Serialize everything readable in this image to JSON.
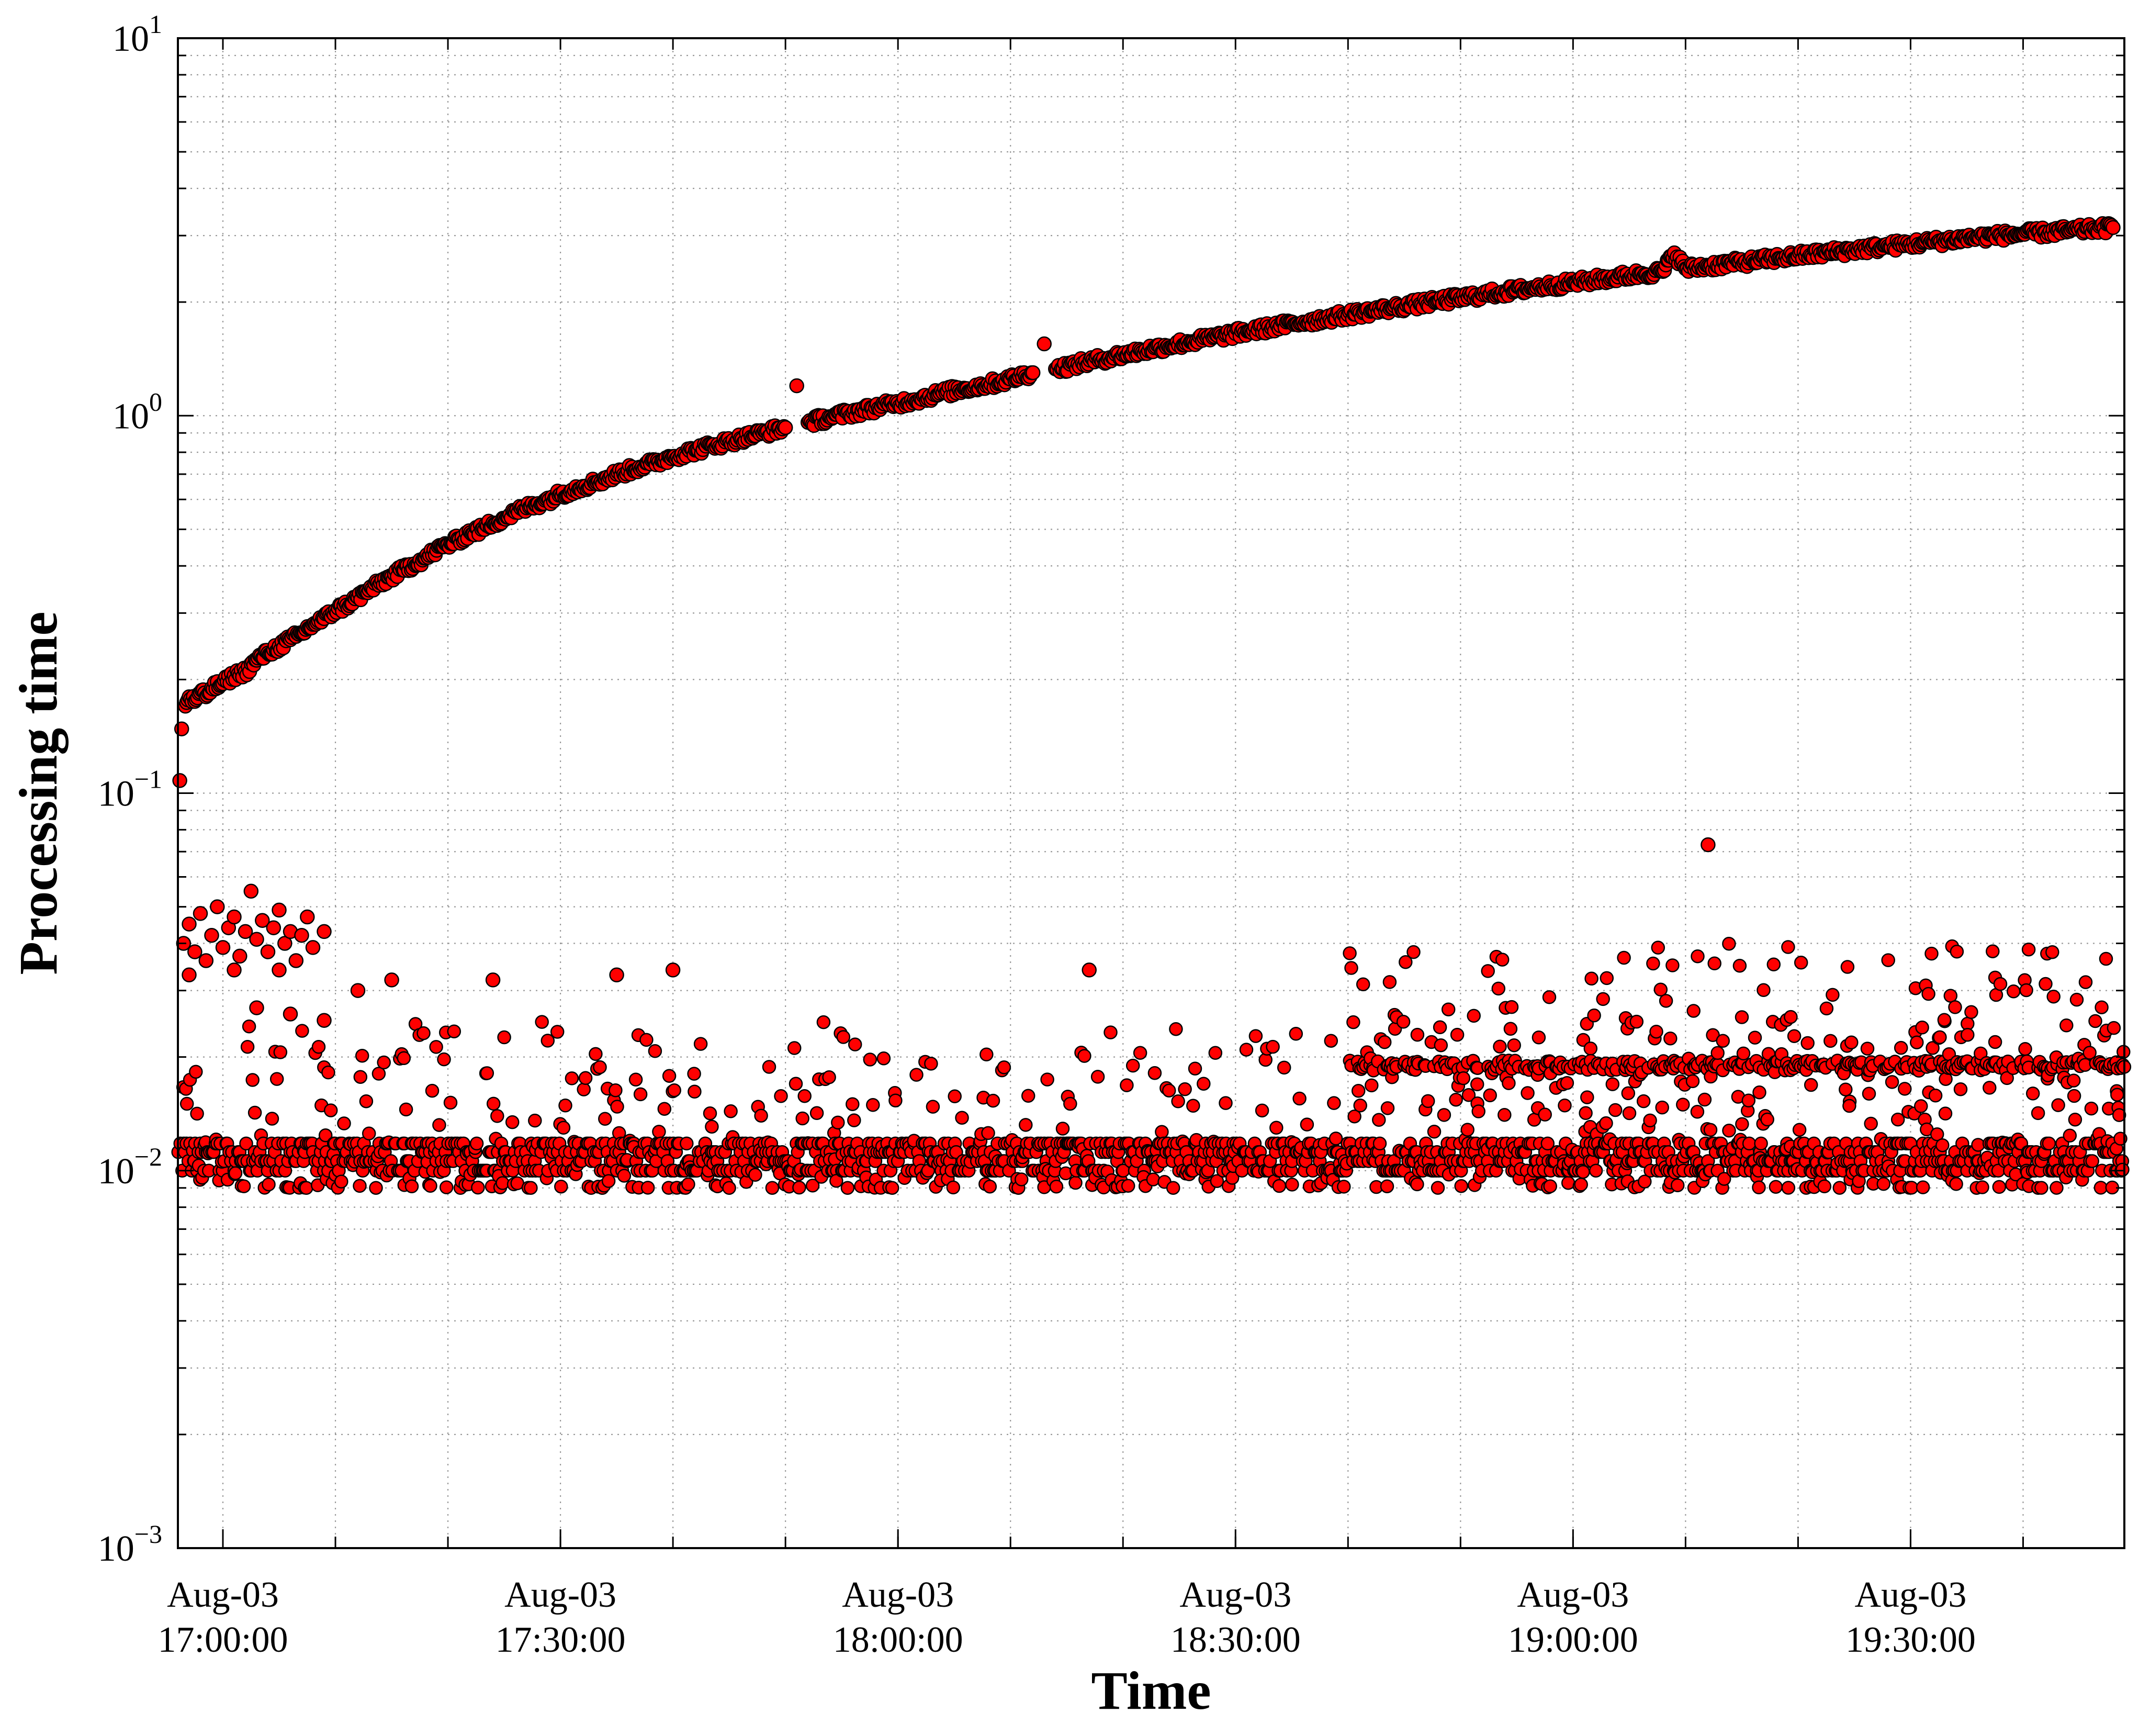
{
  "chart_data": {
    "type": "scatter",
    "title": "",
    "xlabel": "Time",
    "ylabel": "Processing time",
    "y_scale": "log",
    "ylim": [
      0.001,
      10
    ],
    "xlim": [
      "2017-08-03 16:56:00",
      "2017-08-03 19:49:00"
    ],
    "x_ticks": [
      {
        "value": "2017-08-03 17:00:00",
        "label_line1": "Aug-03",
        "label_line2": "17:00:00"
      },
      {
        "value": "2017-08-03 17:30:00",
        "label_line1": "Aug-03",
        "label_line2": "17:30:00"
      },
      {
        "value": "2017-08-03 18:00:00",
        "label_line1": "Aug-03",
        "label_line2": "18:00:00"
      },
      {
        "value": "2017-08-03 18:30:00",
        "label_line1": "Aug-03",
        "label_line2": "18:30:00"
      },
      {
        "value": "2017-08-03 19:00:00",
        "label_line1": "Aug-03",
        "label_line2": "19:00:00"
      },
      {
        "value": "2017-08-03 19:30:00",
        "label_line1": "Aug-03",
        "label_line2": "19:30:00"
      }
    ],
    "x_minor_grid_minutes": 10,
    "y_ticks": [
      {
        "value": 0.001,
        "base": "10",
        "exp": "−3"
      },
      {
        "value": 0.01,
        "base": "10",
        "exp": "−2"
      },
      {
        "value": 0.1,
        "base": "10",
        "exp": "−1"
      },
      {
        "value": 1,
        "base": "10",
        "exp": "0"
      },
      {
        "value": 10,
        "base": "10",
        "exp": "1"
      }
    ],
    "grid": true,
    "grid_style": "dotted",
    "marker": {
      "shape": "circle",
      "fill": "#ff0000",
      "edge": "#000000"
    },
    "series": [
      {
        "points": [
          [
            "16:56:10",
            0.108
          ],
          [
            "16:56:20",
            0.148
          ],
          [
            "16:56:40",
            0.17
          ],
          [
            "16:57:00",
            0.18
          ],
          [
            "16:57:30",
            0.175
          ],
          [
            "16:58:00",
            0.185
          ],
          [
            "16:58:30",
            0.18
          ],
          [
            "16:59:00",
            0.19
          ],
          [
            "17:00:00",
            0.195
          ],
          [
            "17:01:00",
            0.205
          ],
          [
            "17:02:00",
            0.21
          ],
          [
            "17:03:00",
            0.225
          ],
          [
            "17:04:00",
            0.235
          ],
          [
            "17:05:00",
            0.245
          ],
          [
            "17:06:00",
            0.255
          ],
          [
            "17:07:00",
            0.265
          ],
          [
            "17:08:00",
            0.28
          ],
          [
            "17:09:00",
            0.29
          ],
          [
            "17:10:00",
            0.305
          ],
          [
            "17:11:00",
            0.315
          ],
          [
            "17:12:00",
            0.33
          ],
          [
            "17:13:00",
            0.345
          ],
          [
            "17:14:00",
            0.36
          ],
          [
            "17:15:00",
            0.375
          ],
          [
            "17:16:00",
            0.39
          ],
          [
            "17:17:00",
            0.405
          ],
          [
            "17:18:00",
            0.42
          ],
          [
            "17:19:00",
            0.44
          ],
          [
            "17:20:00",
            0.455
          ],
          [
            "17:21:00",
            0.47
          ],
          [
            "17:22:00",
            0.49
          ],
          [
            "17:23:00",
            0.5
          ],
          [
            "17:24:00",
            0.52
          ],
          [
            "17:25:00",
            0.535
          ],
          [
            "17:26:00",
            0.555
          ],
          [
            "17:27:00",
            0.57
          ],
          [
            "17:28:00",
            0.585
          ],
          [
            "17:29:00",
            0.6
          ],
          [
            "17:30:00",
            0.62
          ],
          [
            "17:31:00",
            0.635
          ],
          [
            "17:32:00",
            0.65
          ],
          [
            "17:33:00",
            0.665
          ],
          [
            "17:34:00",
            0.68
          ],
          [
            "17:35:00",
            0.7
          ],
          [
            "17:36:00",
            0.715
          ],
          [
            "17:37:00",
            0.73
          ],
          [
            "17:38:00",
            0.745
          ],
          [
            "17:39:00",
            0.76
          ],
          [
            "17:40:00",
            0.78
          ],
          [
            "17:42:00",
            0.81
          ],
          [
            "17:44:00",
            0.84
          ],
          [
            "17:46:00",
            0.87
          ],
          [
            "17:48:00",
            0.9
          ],
          [
            "17:50:00",
            0.93
          ],
          [
            "17:51:00",
            1.2
          ],
          [
            "17:52:00",
            0.96
          ],
          [
            "17:54:00",
            0.99
          ],
          [
            "17:56:00",
            1.02
          ],
          [
            "17:58:00",
            1.05
          ],
          [
            "18:00:00",
            1.08
          ],
          [
            "18:02:00",
            1.11
          ],
          [
            "18:04:00",
            1.15
          ],
          [
            "18:06:00",
            1.18
          ],
          [
            "18:08:00",
            1.21
          ],
          [
            "18:10:00",
            1.25
          ],
          [
            "18:12:00",
            1.3
          ],
          [
            "18:13:00",
            1.55
          ],
          [
            "18:14:00",
            1.33
          ],
          [
            "18:16:00",
            1.37
          ],
          [
            "18:18:00",
            1.41
          ],
          [
            "18:20:00",
            1.45
          ],
          [
            "18:22:00",
            1.49
          ],
          [
            "18:24:00",
            1.53
          ],
          [
            "18:26:00",
            1.57
          ],
          [
            "18:28:00",
            1.61
          ],
          [
            "18:30:00",
            1.65
          ],
          [
            "18:32:00",
            1.69
          ],
          [
            "18:34:00",
            1.73
          ],
          [
            "18:36:00",
            1.77
          ],
          [
            "18:38:00",
            1.81
          ],
          [
            "18:40:00",
            1.85
          ],
          [
            "18:42:00",
            1.89
          ],
          [
            "18:44:00",
            1.93
          ],
          [
            "18:46:00",
            1.97
          ],
          [
            "18:48:00",
            2.01
          ],
          [
            "18:50:00",
            2.05
          ],
          [
            "18:52:00",
            2.09
          ],
          [
            "18:54:00",
            2.13
          ],
          [
            "18:56:00",
            2.17
          ],
          [
            "18:58:00",
            2.21
          ],
          [
            "19:00:00",
            2.25
          ],
          [
            "19:02:00",
            2.29
          ],
          [
            "19:04:00",
            2.33
          ],
          [
            "19:06:00",
            2.37
          ],
          [
            "19:08:00",
            2.41
          ],
          [
            "19:09:00",
            2.7
          ],
          [
            "19:10:00",
            2.45
          ],
          [
            "19:12:00",
            2.49
          ],
          [
            "19:14:00",
            2.53
          ],
          [
            "19:16:00",
            2.57
          ],
          [
            "19:18:00",
            2.61
          ],
          [
            "19:20:00",
            2.65
          ],
          [
            "19:22:00",
            2.69
          ],
          [
            "19:24:00",
            2.73
          ],
          [
            "19:26:00",
            2.77
          ],
          [
            "19:28:00",
            2.81
          ],
          [
            "19:30:00",
            2.85
          ],
          [
            "19:32:00",
            2.89
          ],
          [
            "19:34:00",
            2.93
          ],
          [
            "19:36:00",
            2.97
          ],
          [
            "19:38:00",
            3.0
          ],
          [
            "19:40:00",
            3.03
          ],
          [
            "19:42:00",
            3.06
          ],
          [
            "19:44:00",
            3.09
          ],
          [
            "19:46:00",
            3.12
          ],
          [
            "19:48:00",
            3.15
          ]
        ]
      },
      {
        "points": [
          [
            "16:56:30",
            0.04
          ],
          [
            "16:57:00",
            0.045
          ],
          [
            "16:57:30",
            0.038
          ],
          [
            "16:58:00",
            0.048
          ],
          [
            "16:58:30",
            0.036
          ],
          [
            "16:59:00",
            0.042
          ],
          [
            "16:59:30",
            0.05
          ],
          [
            "17:00:00",
            0.039
          ],
          [
            "17:00:30",
            0.044
          ],
          [
            "17:01:00",
            0.047
          ],
          [
            "17:01:30",
            0.037
          ],
          [
            "17:02:00",
            0.043
          ],
          [
            "17:02:30",
            0.055
          ],
          [
            "17:03:00",
            0.041
          ],
          [
            "17:03:30",
            0.046
          ],
          [
            "17:04:00",
            0.038
          ],
          [
            "17:04:30",
            0.044
          ],
          [
            "17:05:00",
            0.049
          ],
          [
            "17:05:30",
            0.04
          ],
          [
            "17:06:00",
            0.043
          ],
          [
            "17:06:30",
            0.036
          ],
          [
            "17:07:00",
            0.042
          ],
          [
            "17:07:30",
            0.047
          ],
          [
            "17:08:00",
            0.039
          ],
          [
            "16:57:00",
            0.033
          ],
          [
            "17:01:00",
            0.034
          ],
          [
            "17:05:00",
            0.034
          ],
          [
            "17:09:00",
            0.043
          ],
          [
            "17:12:00",
            0.03
          ],
          [
            "17:15:00",
            0.032
          ],
          [
            "17:03:00",
            0.027
          ],
          [
            "17:06:00",
            0.026
          ],
          [
            "17:09:00",
            0.025
          ],
          [
            "17:35:00",
            0.033
          ],
          [
            "17:40:00",
            0.034
          ],
          [
            "17:24:00",
            0.032
          ],
          [
            "18:17:00",
            0.034
          ],
          [
            "19:12:00",
            0.073
          ]
        ]
      }
    ],
    "band_lower": {
      "x_range": [
        "16:56:00",
        "19:49:00"
      ],
      "core_values": [
        0.01,
        0.0106,
        0.0112,
        0.0118
      ],
      "scatter_range": [
        0.009,
        0.025
      ],
      "upper_shelf_after": "18:40:00",
      "upper_shelf_value": 0.019,
      "upper_shelf_scatter_range": [
        0.014,
        0.04
      ]
    }
  }
}
